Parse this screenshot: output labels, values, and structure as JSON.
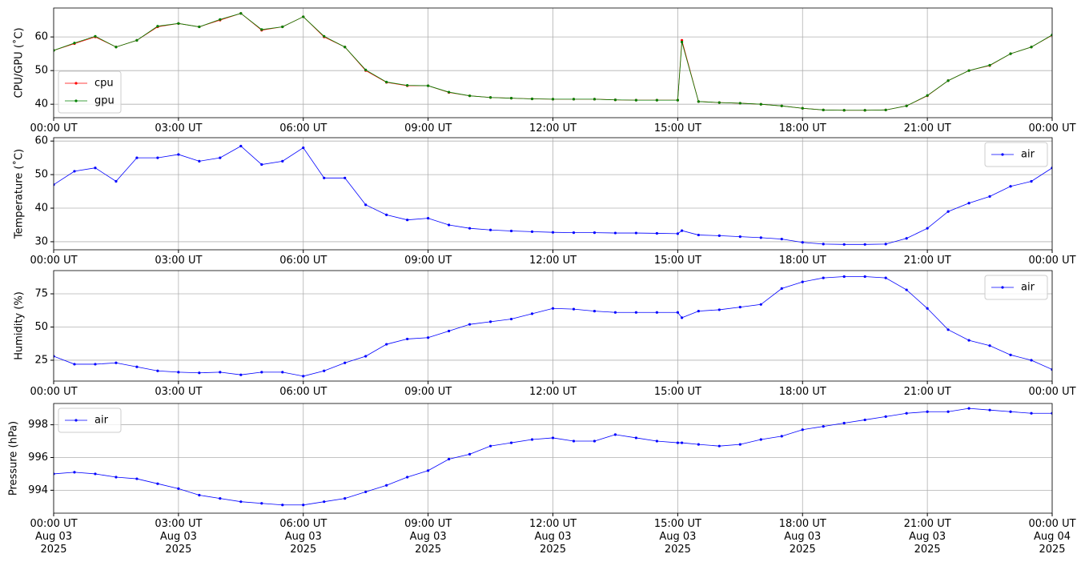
{
  "chart_data": [
    {
      "type": "line",
      "ylabel": "CPU/GPU (˚C)",
      "legend": "lower left",
      "grid": true,
      "x": [
        0,
        0.5,
        1,
        1.5,
        2,
        2.5,
        3,
        3.5,
        4,
        4.5,
        5,
        5.5,
        6,
        6.5,
        7,
        7.5,
        8,
        8.5,
        9,
        9.5,
        10,
        10.5,
        11,
        11.5,
        12,
        12.5,
        13,
        13.5,
        14,
        14.5,
        15,
        15.1,
        15.5,
        16,
        16.5,
        17,
        17.5,
        18,
        18.5,
        19,
        19.5,
        20,
        20.5,
        21,
        21.5,
        22,
        22.5,
        23,
        23.5,
        24
      ],
      "xlim": [
        0,
        24
      ],
      "ylim": [
        36,
        68.6
      ],
      "xticks": [
        {
          "value": 0,
          "label": "00:00 UT"
        },
        {
          "value": 3,
          "label": "03:00 UT"
        },
        {
          "value": 6,
          "label": "06:00 UT"
        },
        {
          "value": 9,
          "label": "09:00 UT"
        },
        {
          "value": 12,
          "label": "12:00 UT"
        },
        {
          "value": 15,
          "label": "15:00 UT"
        },
        {
          "value": 18,
          "label": "18:00 UT"
        },
        {
          "value": 21,
          "label": "21:00 UT"
        },
        {
          "value": 24,
          "label": "00:00 UT"
        }
      ],
      "yticks": [
        40,
        50,
        60
      ],
      "series": [
        {
          "name": "cpu",
          "color": "#ff0000",
          "values": [
            56,
            58,
            60,
            57,
            59,
            63,
            64,
            63,
            65,
            67,
            62,
            63,
            66,
            60,
            57,
            50,
            46.5,
            45.5,
            45.5,
            43.5,
            42.5,
            42,
            41.8,
            41.6,
            41.5,
            41.5,
            41.5,
            41.3,
            41.2,
            41.2,
            41.2,
            59,
            40.8,
            40.5,
            40.3,
            40,
            39.5,
            38.8,
            38.3,
            38.2,
            38.2,
            38.3,
            39.5,
            42.5,
            47,
            50,
            51.5,
            55,
            57,
            60.5
          ]
        },
        {
          "name": "gpu",
          "color": "#008000",
          "values": [
            56,
            58.2,
            60.2,
            57,
            59,
            63.2,
            64,
            63,
            65.2,
            67,
            62.2,
            63,
            66,
            60.2,
            57,
            50.2,
            46.6,
            45.6,
            45.5,
            43.6,
            42.5,
            42,
            41.8,
            41.6,
            41.5,
            41.5,
            41.5,
            41.3,
            41.2,
            41.2,
            41.2,
            58.5,
            40.8,
            40.5,
            40.3,
            40,
            39.5,
            38.8,
            38.3,
            38.2,
            38.2,
            38.3,
            39.5,
            42.6,
            47,
            50,
            51.6,
            55,
            57,
            60.6
          ]
        }
      ]
    },
    {
      "type": "line",
      "ylabel": "Temperature (˚C)",
      "legend": "upper right",
      "grid": true,
      "x": [
        0,
        0.5,
        1,
        1.5,
        2,
        2.5,
        3,
        3.5,
        4,
        4.5,
        5,
        5.5,
        6,
        6.5,
        7,
        7.5,
        8,
        8.5,
        9,
        9.5,
        10,
        10.5,
        11,
        11.5,
        12,
        12.5,
        13,
        13.5,
        14,
        14.5,
        15,
        15.1,
        15.5,
        16,
        16.5,
        17,
        17.5,
        18,
        18.5,
        19,
        19.5,
        20,
        20.5,
        21,
        21.5,
        22,
        22.5,
        23,
        23.5,
        24
      ],
      "xlim": [
        0,
        24
      ],
      "ylim": [
        27.6,
        61
      ],
      "xticks": [
        {
          "value": 0,
          "label": "00:00 UT"
        },
        {
          "value": 3,
          "label": "03:00 UT"
        },
        {
          "value": 6,
          "label": "06:00 UT"
        },
        {
          "value": 9,
          "label": "09:00 UT"
        },
        {
          "value": 12,
          "label": "12:00 UT"
        },
        {
          "value": 15,
          "label": "15:00 UT"
        },
        {
          "value": 18,
          "label": "18:00 UT"
        },
        {
          "value": 21,
          "label": "21:00 UT"
        },
        {
          "value": 24,
          "label": "00:00 UT"
        }
      ],
      "yticks": [
        30,
        40,
        50,
        60
      ],
      "series": [
        {
          "name": "air",
          "color": "#0000ff",
          "values": [
            47,
            51,
            52,
            48,
            55,
            55,
            56,
            54,
            55,
            58.5,
            53,
            54,
            58,
            49,
            49,
            41,
            38,
            36.5,
            37,
            35,
            34,
            33.5,
            33.2,
            33,
            32.8,
            32.7,
            32.7,
            32.6,
            32.6,
            32.5,
            32.4,
            33.3,
            32,
            31.8,
            31.5,
            31.2,
            30.8,
            29.8,
            29.3,
            29.2,
            29.2,
            29.3,
            31,
            34,
            39,
            41.5,
            43.5,
            46.5,
            48,
            52
          ]
        }
      ]
    },
    {
      "type": "line",
      "ylabel": "Humidity (%)",
      "legend": "upper right",
      "grid": true,
      "x": [
        0,
        0.5,
        1,
        1.5,
        2,
        2.5,
        3,
        3.5,
        4,
        4.5,
        5,
        5.5,
        6,
        6.5,
        7,
        7.5,
        8,
        8.5,
        9,
        9.5,
        10,
        10.5,
        11,
        11.5,
        12,
        12.5,
        13,
        13.5,
        14,
        14.5,
        15,
        15.1,
        15.5,
        16,
        16.5,
        17,
        17.5,
        18,
        18.5,
        19,
        19.5,
        20,
        20.5,
        21,
        21.5,
        22,
        22.5,
        23,
        23.5,
        24
      ],
      "xlim": [
        0,
        24
      ],
      "ylim": [
        9.3,
        92.5
      ],
      "xticks": [
        {
          "value": 0,
          "label": "00:00 UT"
        },
        {
          "value": 3,
          "label": "03:00 UT"
        },
        {
          "value": 6,
          "label": "06:00 UT"
        },
        {
          "value": 9,
          "label": "09:00 UT"
        },
        {
          "value": 12,
          "label": "12:00 UT"
        },
        {
          "value": 15,
          "label": "15:00 UT"
        },
        {
          "value": 18,
          "label": "18:00 UT"
        },
        {
          "value": 21,
          "label": "21:00 UT"
        },
        {
          "value": 24,
          "label": "00:00 UT"
        }
      ],
      "yticks": [
        25,
        50,
        75
      ],
      "series": [
        {
          "name": "air",
          "color": "#0000ff",
          "values": [
            28,
            22,
            22,
            23,
            20,
            17,
            16,
            15.5,
            16,
            14,
            16,
            16,
            13,
            17,
            23,
            28,
            37,
            41,
            42,
            47,
            52,
            54,
            56,
            60,
            64,
            63.5,
            62,
            61,
            61,
            61,
            61,
            57,
            62,
            63,
            65,
            67,
            79,
            84,
            87,
            88,
            88,
            87,
            78,
            64,
            48,
            40,
            36,
            29,
            25,
            18
          ]
        }
      ]
    },
    {
      "type": "line",
      "ylabel": "Pressure (hPa)",
      "legend": "upper left",
      "grid": true,
      "x": [
        0,
        0.5,
        1,
        1.5,
        2,
        2.5,
        3,
        3.5,
        4,
        4.5,
        5,
        5.5,
        6,
        6.5,
        7,
        7.5,
        8,
        8.5,
        9,
        9.5,
        10,
        10.5,
        11,
        11.5,
        12,
        12.5,
        13,
        13.5,
        14,
        14.5,
        15,
        15.1,
        15.5,
        16,
        16.5,
        17,
        17.5,
        18,
        18.5,
        19,
        19.5,
        20,
        20.5,
        21,
        21.5,
        22,
        22.5,
        23,
        23.5,
        24
      ],
      "xlim": [
        0,
        24
      ],
      "ylim": [
        992.6,
        999.3
      ],
      "xticks": [
        {
          "value": 0,
          "label": "00:00 UT\nAug 03\n2025"
        },
        {
          "value": 3,
          "label": "03:00 UT\nAug 03\n2025"
        },
        {
          "value": 6,
          "label": "06:00 UT\nAug 03\n2025"
        },
        {
          "value": 9,
          "label": "09:00 UT\nAug 03\n2025"
        },
        {
          "value": 12,
          "label": "12:00 UT\nAug 03\n2025"
        },
        {
          "value": 15,
          "label": "15:00 UT\nAug 03\n2025"
        },
        {
          "value": 18,
          "label": "18:00 UT\nAug 03\n2025"
        },
        {
          "value": 21,
          "label": "21:00 UT\nAug 03\n2025"
        },
        {
          "value": 24,
          "label": "00:00 UT\nAug 04\n2025"
        }
      ],
      "yticks": [
        994,
        996,
        998
      ],
      "series": [
        {
          "name": "air",
          "color": "#0000ff",
          "values": [
            995.0,
            995.1,
            995.0,
            994.8,
            994.7,
            994.4,
            994.1,
            993.7,
            993.5,
            993.3,
            993.2,
            993.1,
            993.1,
            993.3,
            993.5,
            993.9,
            994.3,
            994.8,
            995.2,
            995.9,
            996.2,
            996.7,
            996.9,
            997.1,
            997.2,
            997.0,
            997.0,
            997.4,
            997.2,
            997.0,
            996.9,
            996.9,
            996.8,
            996.7,
            996.8,
            997.1,
            997.3,
            997.7,
            997.9,
            998.1,
            998.3,
            998.5,
            998.7,
            998.8,
            998.8,
            999.0,
            998.9,
            998.8,
            998.7,
            998.7
          ]
        }
      ]
    }
  ]
}
